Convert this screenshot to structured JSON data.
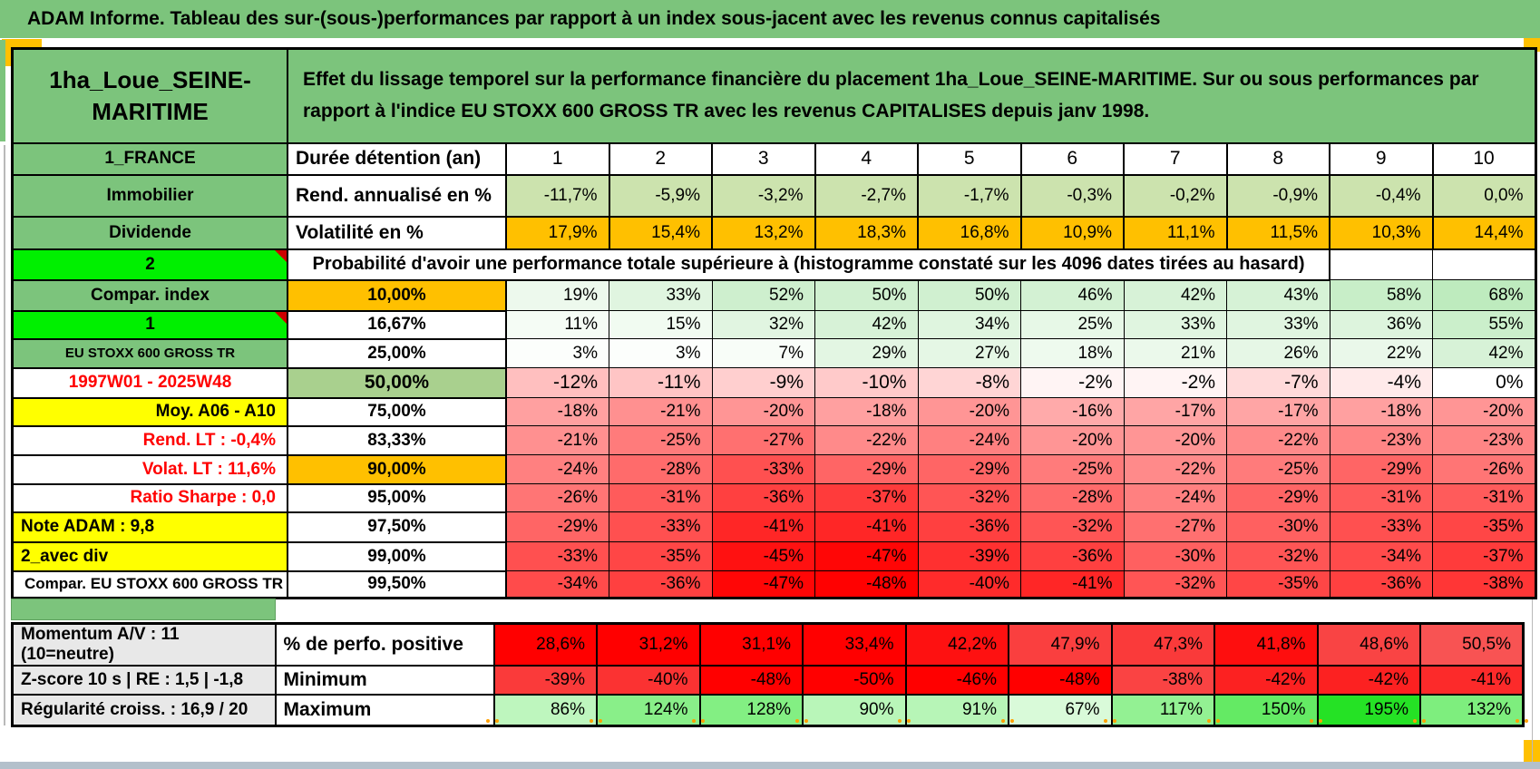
{
  "title_bar": {
    "text": "ADAM Informe. Tableau des sur-(sous-)performances par rapport à un index sous-jacent avec les revenus connus capitalisés"
  },
  "header": {
    "name": "1ha_Loue_SEINE-MARITIME",
    "description": "Effet du lissage temporel sur la performance financière du placement 1ha_Loue_SEINE-MARITIME. Sur ou sous performances par rapport à l'indice EU STOXX 600 GROSS TR avec les revenus CAPITALISES depuis janv 1998."
  },
  "colors": {
    "band_green": "#7CC47C",
    "bright_green": "#00F000",
    "orange": "#FFC000",
    "yellow": "#FFFF00",
    "mid_green": "#A9D08E",
    "light_green": "#CCE3AE",
    "gray_label": "#E8E8E8",
    "red_text": "#FF0000",
    "strong_red": "#FF0000",
    "strong_green": "#25F825",
    "bottom_strip": "#B3C0CB",
    "marker_orange": "#FFC000"
  },
  "main_table": {
    "rows": [
      {
        "label": "1_FRANCE",
        "lc": "bg-green bold al-c",
        "head": "Durée détention (an)",
        "hc": "al-l bold fs-lg",
        "cells": [
          "1",
          "2",
          "3",
          "4",
          "5",
          "6",
          "7",
          "8",
          "9",
          "10"
        ],
        "cc": "al-c bold fs-lg",
        "bg": null,
        "scale": null
      },
      {
        "label": "Immobilier",
        "lc": "bg-green bold al-c",
        "head": "Rend. annualisé en %",
        "hc": "al-l bold fs-lg",
        "cells": [
          "-11,7%",
          "-5,9%",
          "-3,2%",
          "-2,7%",
          "-1,7%",
          "-0,3%",
          "-0,2%",
          "-0,9%",
          "-0,4%",
          "0,0%"
        ],
        "cc": "al-r bold",
        "bg": "light_green",
        "scale": null
      },
      {
        "label": "Dividende",
        "lc": "bg-green bold al-c",
        "head": "Volatilité en %",
        "hc": "al-l bold fs-lg",
        "cells": [
          "17,9%",
          "15,4%",
          "13,2%",
          "18,3%",
          "16,8%",
          "10,9%",
          "11,1%",
          "11,5%",
          "10,3%",
          "14,4%"
        ],
        "cc": "al-r",
        "bg": "orange",
        "scale": null
      },
      {
        "type": "probtitle",
        "label": "2",
        "lc": "bg-bright bold al-c corner-cell",
        "text": "Probabilité d'avoir une performance totale supérieure à (histogramme constaté sur les 4096 dates tirées au hasard)"
      },
      {
        "label": "Compar. index",
        "lc": "bg-green bold al-c",
        "head": "10,00%",
        "hc": "bg-orange al-c bold",
        "cells": [
          "19%",
          "33%",
          "52%",
          "50%",
          "50%",
          "46%",
          "42%",
          "43%",
          "58%",
          "68%"
        ],
        "cc": "al-r bold",
        "bg": null,
        "scale": "prob"
      },
      {
        "label": "1",
        "lc": "bg-bright bold al-c corner-cell",
        "head": "16,67%",
        "hc": "al-c bold",
        "cells": [
          "11%",
          "15%",
          "32%",
          "42%",
          "34%",
          "25%",
          "33%",
          "33%",
          "36%",
          "55%"
        ],
        "cc": "al-r",
        "bg": null,
        "scale": "prob"
      },
      {
        "label": "EU STOXX 600 GROSS TR",
        "lc": "bg-green bold al-c fs-sm",
        "head": "25,00%",
        "hc": "al-c bold",
        "cells": [
          "3%",
          "3%",
          "7%",
          "29%",
          "27%",
          "18%",
          "21%",
          "26%",
          "22%",
          "42%"
        ],
        "cc": "al-r",
        "bg": null,
        "scale": "prob"
      },
      {
        "label": "1997W01 - 2025W48",
        "lc": "red bold al-c",
        "head": "50,00%",
        "hc": "bg-mgreen al-c bold fs-lg",
        "cells": [
          "-12%",
          "-11%",
          "-9%",
          "-10%",
          "-8%",
          "-2%",
          "-2%",
          "-7%",
          "-4%",
          "0%"
        ],
        "cc": "al-r bold fs-lg",
        "bg": null,
        "scale": "prob"
      },
      {
        "label": "Moy. A06 - A10",
        "lc": "bg-yellow bold al-r",
        "head": "75,00%",
        "hc": "al-c bold",
        "cells": [
          "-18%",
          "-21%",
          "-20%",
          "-18%",
          "-20%",
          "-16%",
          "-17%",
          "-17%",
          "-18%",
          "-20%"
        ],
        "cc": "al-r",
        "bg": null,
        "scale": "prob"
      },
      {
        "label": "Rend. LT :   -0,4%",
        "lc": "red bold al-r",
        "head": "83,33%",
        "hc": "al-c bold",
        "cells": [
          "-21%",
          "-25%",
          "-27%",
          "-22%",
          "-24%",
          "-20%",
          "-20%",
          "-22%",
          "-23%",
          "-23%"
        ],
        "cc": "al-r",
        "bg": null,
        "scale": "prob"
      },
      {
        "label": "Volat. LT :   11,6%",
        "lc": "red bold al-r",
        "head": "90,00%",
        "hc": "bg-orange al-c bold",
        "cells": [
          "-24%",
          "-28%",
          "-33%",
          "-29%",
          "-29%",
          "-25%",
          "-22%",
          "-25%",
          "-29%",
          "-26%"
        ],
        "cc": "al-r bold",
        "bg": null,
        "scale": "prob"
      },
      {
        "label": "Ratio Sharpe :   0,0",
        "lc": "red bold al-r",
        "head": "95,00%",
        "hc": "al-c bold",
        "cells": [
          "-26%",
          "-31%",
          "-36%",
          "-37%",
          "-32%",
          "-28%",
          "-24%",
          "-29%",
          "-31%",
          "-31%"
        ],
        "cc": "al-r",
        "bg": null,
        "scale": "prob"
      },
      {
        "label": "Note ADAM : 9,8",
        "lc": "bg-yellow bold al-l",
        "head": "97,50%",
        "hc": "al-c bold",
        "cells": [
          "-29%",
          "-33%",
          "-41%",
          "-41%",
          "-36%",
          "-32%",
          "-27%",
          "-30%",
          "-33%",
          "-35%"
        ],
        "cc": "al-r",
        "bg": null,
        "scale": "prob"
      },
      {
        "label": "2_avec div",
        "lc": "bg-yellow bold al-l",
        "head": "99,00%",
        "hc": "al-c bold",
        "cells": [
          "-33%",
          "-35%",
          "-45%",
          "-47%",
          "-39%",
          "-36%",
          "-30%",
          "-32%",
          "-34%",
          "-37%"
        ],
        "cc": "al-r",
        "bg": null,
        "scale": "prob"
      },
      {
        "label": "Compar. EU STOXX 600 GROSS TR",
        "lc": "bold al-l fs-md",
        "head": "99,50%",
        "hc": "al-c bold",
        "cells": [
          "-34%",
          "-36%",
          "-47%",
          "-48%",
          "-40%",
          "-41%",
          "-32%",
          "-35%",
          "-36%",
          "-38%"
        ],
        "cc": "al-r",
        "bg": null,
        "scale": "prob"
      }
    ]
  },
  "bottom_table": {
    "rows": [
      {
        "label": "Momentum A/V : 11 (10=neutre)",
        "lc": "bg-lgray bold al-l",
        "head": "% de perfo. positive",
        "hc": "al-l bold fs-lg",
        "cells": [
          "28,6%",
          "31,2%",
          "31,1%",
          "33,4%",
          "42,2%",
          "47,9%",
          "47,3%",
          "41,8%",
          "48,6%",
          "50,5%"
        ],
        "cc": "al-r bold",
        "bg": null,
        "scale": "pctpos"
      },
      {
        "label": "Z-score 10 s | RE : 1,5 | -1,8",
        "lc": "bg-lgray bold al-l",
        "head": "Minimum",
        "hc": "al-l bold fs-lg",
        "cells": [
          "-39%",
          "-40%",
          "-48%",
          "-50%",
          "-46%",
          "-48%",
          "-38%",
          "-42%",
          "-42%",
          "-41%"
        ],
        "cc": "al-r bold",
        "bg": null,
        "scale": "min"
      },
      {
        "label": "Régularité croiss. : 16,9 / 20",
        "lc": "bg-lgray bold al-l",
        "head": "Maximum",
        "hc": "al-l bold fs-lg",
        "cells": [
          "86%",
          "124%",
          "128%",
          "90%",
          "91%",
          "67%",
          "117%",
          "150%",
          "195%",
          "132%"
        ],
        "cc": "al-r bold",
        "bg": null,
        "scale": "max"
      }
    ]
  }
}
